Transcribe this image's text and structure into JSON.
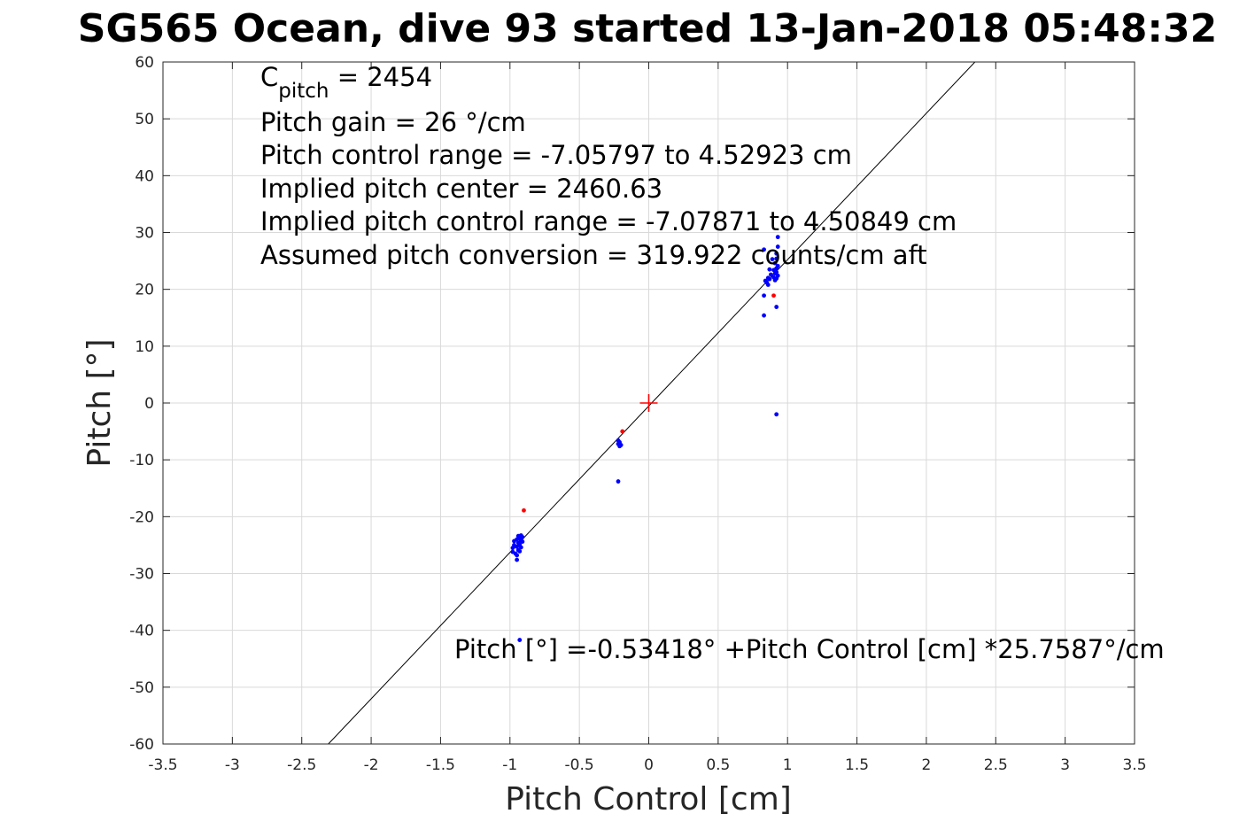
{
  "chart_data": {
    "type": "scatter",
    "title": "SG565 Ocean, dive 93 started 13-Jan-2018 05:48:32",
    "xlabel": "Pitch Control [cm]",
    "ylabel": "Pitch [°]",
    "xlim": [
      -3.5,
      3.5
    ],
    "ylim": [
      -60,
      60
    ],
    "x_ticks": [
      -3.5,
      -3,
      -2.5,
      -2,
      -1.5,
      -1,
      -0.5,
      0,
      0.5,
      1,
      1.5,
      2,
      2.5,
      3,
      3.5
    ],
    "x_tick_labels": [
      "-3.5",
      "-3",
      "-2.5",
      "-2",
      "-1.5",
      "-1",
      "-0.5",
      "0",
      "0.5",
      "1",
      "1.5",
      "2",
      "2.5",
      "3",
      "3.5"
    ],
    "y_ticks": [
      -60,
      -50,
      -40,
      -30,
      -20,
      -10,
      0,
      10,
      20,
      30,
      40,
      50,
      60
    ],
    "y_tick_labels": [
      "-60",
      "-50",
      "-40",
      "-30",
      "-20",
      "-10",
      "0",
      "10",
      "20",
      "30",
      "40",
      "50",
      "60"
    ],
    "grid": true,
    "annotations": {
      "c_pitch_symbol": "C",
      "c_pitch_subscript": "pitch",
      "c_pitch_value": " = 2454",
      "pitch_gain": "Pitch gain = 26 °/cm",
      "control_range": "Pitch control range = -7.05797 to 4.52923 cm",
      "implied_center": "Implied pitch center = 2460.63",
      "implied_range": "Implied pitch control range = -7.07871 to 4.50849 cm",
      "assumed_conversion": "Assumed pitch conversion = 319.922 counts/cm aft",
      "fit_equation": "Pitch [°] =-0.53418° +Pitch Control [cm] *25.7587°/cm"
    },
    "fit_line": {
      "intercept": -0.53418,
      "slope": 25.7587,
      "color": "#000000"
    },
    "center_marker": {
      "x": 0,
      "y": 0,
      "color": "#ff0000"
    },
    "series": [
      {
        "color": "#0000ff",
        "points": [
          [
            -0.98,
            -25.5
          ],
          [
            -0.98,
            -26.2
          ],
          [
            -0.97,
            -24.3
          ],
          [
            -0.97,
            -25.0
          ],
          [
            -0.96,
            -26.5
          ],
          [
            -0.95,
            -24.0
          ],
          [
            -0.95,
            -25.3
          ],
          [
            -0.95,
            -26.8
          ],
          [
            -0.95,
            -27.6
          ],
          [
            -0.94,
            -23.4
          ],
          [
            -0.94,
            -24.6
          ],
          [
            -0.94,
            -25.9
          ],
          [
            -0.93,
            -23.8
          ],
          [
            -0.93,
            -24.9
          ],
          [
            -0.93,
            -26.1
          ],
          [
            -0.92,
            -23.3
          ],
          [
            -0.92,
            -24.2
          ],
          [
            -0.92,
            -25.4
          ],
          [
            -0.91,
            -23.6
          ],
          [
            -0.91,
            -24.4
          ],
          [
            -0.93,
            -41.7
          ],
          [
            -0.22,
            -6.6
          ],
          [
            -0.22,
            -7.2
          ],
          [
            -0.21,
            -7.6
          ],
          [
            -0.21,
            -6.9
          ],
          [
            -0.2,
            -7.4
          ],
          [
            -0.22,
            -13.8
          ],
          [
            0.83,
            27.0
          ],
          [
            0.83,
            18.9
          ],
          [
            0.83,
            15.4
          ],
          [
            0.84,
            21.5
          ],
          [
            0.85,
            21.2
          ],
          [
            0.86,
            22.0
          ],
          [
            0.86,
            20.8
          ],
          [
            0.87,
            23.5
          ],
          [
            0.87,
            21.8
          ],
          [
            0.88,
            22.6
          ],
          [
            0.89,
            25.3
          ],
          [
            0.9,
            23.4
          ],
          [
            0.9,
            22.1
          ],
          [
            0.91,
            24.6
          ],
          [
            0.91,
            22.8
          ],
          [
            0.92,
            26.3
          ],
          [
            0.92,
            23.0
          ],
          [
            0.92,
            25.4
          ],
          [
            0.92,
            21.9
          ],
          [
            0.93,
            24.1
          ],
          [
            0.93,
            27.5
          ],
          [
            0.93,
            22.4
          ],
          [
            0.93,
            29.2
          ],
          [
            0.92,
            23.7
          ],
          [
            0.91,
            21.6
          ],
          [
            0.92,
            16.9
          ],
          [
            0.92,
            -2.0
          ]
        ]
      },
      {
        "color": "#ff0000",
        "points": [
          [
            -0.9,
            -18.9
          ],
          [
            -0.19,
            -5.0
          ],
          [
            0.9,
            18.9
          ]
        ]
      }
    ]
  }
}
